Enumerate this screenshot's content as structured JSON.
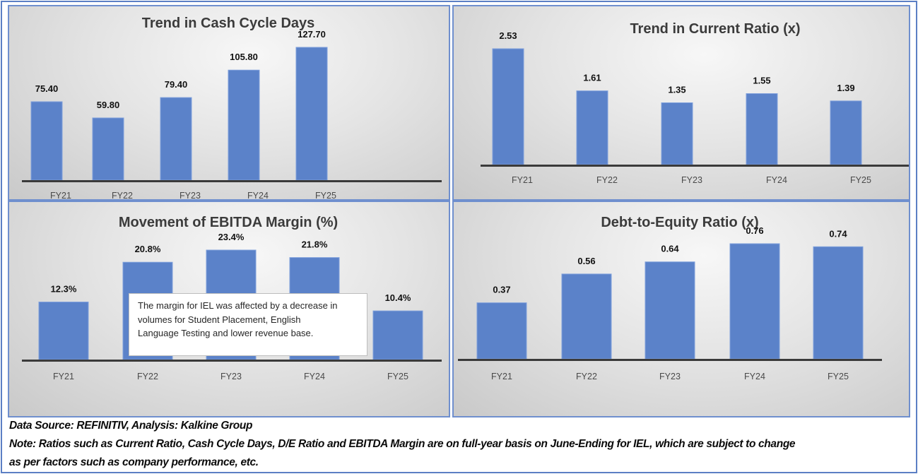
{
  "chart_data": [
    {
      "type": "bar",
      "title": "Trend in Cash Cycle Days",
      "categories": [
        "FY21",
        "FY22",
        "FY23",
        "FY24",
        "FY25"
      ],
      "values": [
        75.4,
        59.8,
        79.4,
        105.8,
        127.7
      ],
      "value_labels": [
        "75.40",
        "59.80",
        "79.40",
        "105.80",
        "127.70"
      ],
      "xlabel": "",
      "ylabel": "",
      "ylim": [
        0,
        127.7
      ],
      "grid": false,
      "legend": "none"
    },
    {
      "type": "bar",
      "title": "Trend in Current Ratio (x)",
      "categories": [
        "FY21",
        "FY22",
        "FY23",
        "FY24",
        "FY25"
      ],
      "values": [
        2.53,
        1.61,
        1.35,
        1.55,
        1.39
      ],
      "value_labels": [
        "2.53",
        "1.61",
        "1.35",
        "1.55",
        "1.39"
      ],
      "xlabel": "",
      "ylabel": "",
      "ylim": [
        0,
        2.53
      ],
      "grid": false,
      "legend": "none"
    },
    {
      "type": "bar",
      "title": "Movement of EBITDA Margin (%)",
      "categories": [
        "FY21",
        "FY22",
        "FY23",
        "FY24",
        "FY25"
      ],
      "values": [
        12.3,
        20.8,
        23.4,
        21.8,
        10.4
      ],
      "value_labels": [
        "12.3%",
        "20.8%",
        "23.4%",
        "21.8%",
        "10.4%"
      ],
      "xlabel": "",
      "ylabel": "",
      "ylim": [
        0,
        23.4
      ],
      "grid": false,
      "legend": "none",
      "annotation": "The margin for IEL was affected by a decrease in volumes for Student Placement, English Language Testing and lower revenue base."
    },
    {
      "type": "bar",
      "title": "Debt-to-Equity Ratio (x)",
      "categories": [
        "FY21",
        "FY22",
        "FY23",
        "FY24",
        "FY25"
      ],
      "values": [
        0.37,
        0.56,
        0.64,
        0.76,
        0.74
      ],
      "value_labels": [
        "0.37",
        "0.56",
        "0.64",
        "0.76",
        "0.74"
      ],
      "xlabel": "",
      "ylabel": "",
      "ylim": [
        0,
        0.76
      ],
      "grid": false,
      "legend": "none"
    }
  ],
  "colors": {
    "bar": "#5b82c9",
    "frame": "#5b7fc4",
    "axis": "#3a3a3a"
  },
  "annotation": {
    "lines": [
      "The margin for IEL was affected by a decrease in",
      "volumes for Student Placement, English",
      "Language Testing and lower revenue base."
    ]
  },
  "footer": {
    "source": "Data Source: REFINITIV, Analysis: Kalkine Group",
    "note_line1": "Note: Ratios such as Current Ratio, Cash Cycle Days, D/E Ratio and EBITDA Margin are on full-year basis on June-Ending for IEL, which are subject to change",
    "note_line2": "as per factors such as company performance, etc."
  }
}
